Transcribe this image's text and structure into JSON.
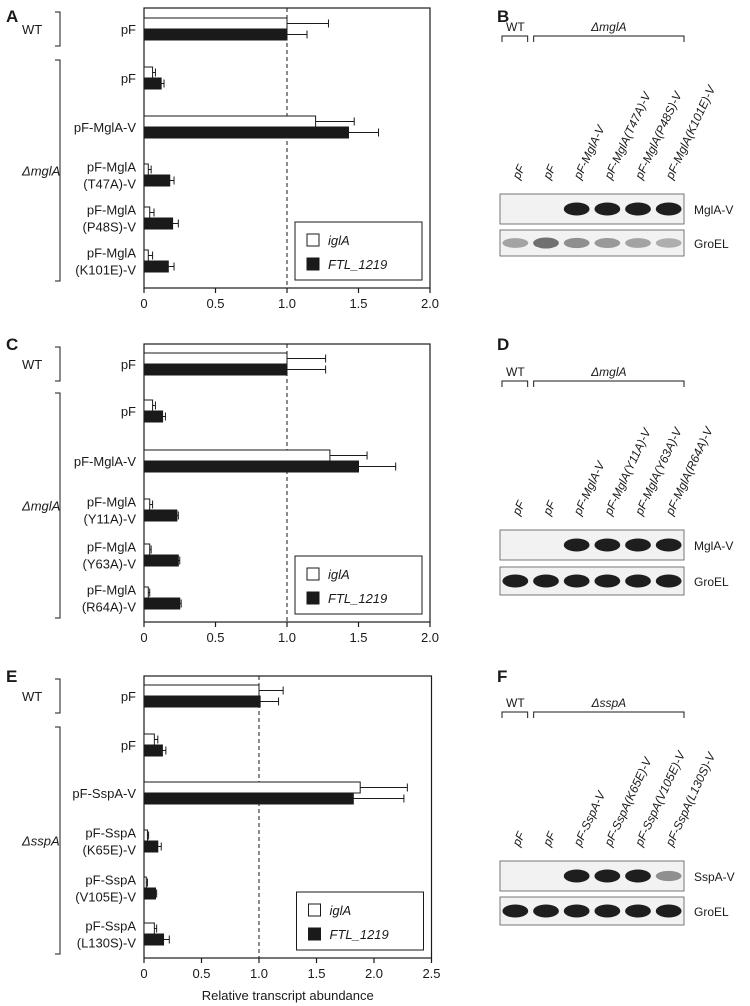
{
  "chart_data": [
    {
      "panel": "A",
      "type": "bar",
      "orientation": "horizontal",
      "xlim": [
        0,
        2.0
      ],
      "xticks": [
        "0",
        "0.5",
        "1.0",
        "1.5",
        "2.0"
      ],
      "reference_line": 1.0,
      "legend_position": "bottom-right",
      "groups": [
        {
          "label": "WT",
          "italic": false,
          "rows": [
            0
          ]
        },
        {
          "label": "ΔmglA",
          "italic": true,
          "rows": [
            1,
            2,
            3,
            4,
            5
          ]
        }
      ],
      "categories": [
        [
          "pF"
        ],
        [
          "pF"
        ],
        [
          "pF-MglA-V"
        ],
        [
          "pF-MglA",
          "(T47A)-V"
        ],
        [
          "pF-MglA",
          "(P48S)-V"
        ],
        [
          "pF-MglA",
          "(K101E)-V"
        ]
      ],
      "series": [
        {
          "name": "iglA",
          "color": "#ffffff",
          "values": [
            1.0,
            0.06,
            1.2,
            0.03,
            0.04,
            0.03
          ],
          "errors": [
            0.29,
            0.02,
            0.27,
            0.02,
            0.03,
            0.03
          ]
        },
        {
          "name": "FTL_1219",
          "color": "#1a1a1a",
          "values": [
            1.0,
            0.12,
            1.43,
            0.18,
            0.2,
            0.17
          ],
          "errors": [
            0.14,
            0.02,
            0.21,
            0.03,
            0.04,
            0.04
          ]
        }
      ]
    },
    {
      "panel": "C",
      "type": "bar",
      "orientation": "horizontal",
      "xlim": [
        0,
        2.0
      ],
      "xticks": [
        "0",
        "0.5",
        "1.0",
        "1.5",
        "2.0"
      ],
      "reference_line": 1.0,
      "legend_position": "bottom-right",
      "groups": [
        {
          "label": "WT",
          "italic": false,
          "rows": [
            0
          ]
        },
        {
          "label": "ΔmglA",
          "italic": true,
          "rows": [
            1,
            2,
            3,
            4,
            5
          ]
        }
      ],
      "categories": [
        [
          "pF"
        ],
        [
          "pF"
        ],
        [
          "pF-MglA-V"
        ],
        [
          "pF-MglA",
          "(Y11A)-V"
        ],
        [
          "pF-MglA",
          "(Y63A)-V"
        ],
        [
          "pF-MglA",
          "(R64A)-V"
        ]
      ],
      "series": [
        {
          "name": "iglA",
          "color": "#ffffff",
          "values": [
            1.0,
            0.06,
            1.3,
            0.04,
            0.04,
            0.03
          ],
          "errors": [
            0.27,
            0.02,
            0.26,
            0.02,
            0.01,
            0.01
          ]
        },
        {
          "name": "FTL_1219",
          "color": "#1a1a1a",
          "values": [
            1.0,
            0.13,
            1.5,
            0.23,
            0.24,
            0.25
          ],
          "errors": [
            0.27,
            0.02,
            0.26,
            0.01,
            0.01,
            0.01
          ]
        }
      ]
    },
    {
      "panel": "E",
      "type": "bar",
      "orientation": "horizontal",
      "xlim": [
        0,
        2.5
      ],
      "xticks": [
        "0",
        "0.5",
        "1.0",
        "1.5",
        "2.0",
        "2.5"
      ],
      "reference_line": 1.0,
      "xlabel": "Relative transcript abundance",
      "legend_position": "bottom-right",
      "groups": [
        {
          "label": "WT",
          "italic": false,
          "rows": [
            0
          ]
        },
        {
          "label": "ΔsspA",
          "italic": true,
          "rows": [
            1,
            2,
            3,
            4,
            5
          ]
        }
      ],
      "categories": [
        [
          "pF"
        ],
        [
          "pF"
        ],
        [
          "pF-SspA-V"
        ],
        [
          "pF-SspA",
          "(K65E)-V"
        ],
        [
          "pF-SspA",
          "(V105E)-V"
        ],
        [
          "pF-SspA",
          "(L130S)-V"
        ]
      ],
      "series": [
        {
          "name": "iglA",
          "color": "#ffffff",
          "values": [
            1.0,
            0.09,
            1.88,
            0.03,
            0.02,
            0.09
          ],
          "errors": [
            0.21,
            0.03,
            0.41,
            0.01,
            0.01,
            0.02
          ]
        },
        {
          "name": "FTL_1219",
          "color": "#1a1a1a",
          "values": [
            1.01,
            0.16,
            1.82,
            0.12,
            0.1,
            0.17
          ],
          "errors": [
            0.16,
            0.03,
            0.44,
            0.03,
            0.01,
            0.05
          ]
        }
      ]
    }
  ],
  "blots": [
    {
      "panel": "B",
      "wt_label": "WT",
      "mutant_label": "ΔmglA",
      "lanes": [
        "pF",
        "pF",
        "pF-MglA-V",
        "pF-MglA(T47A)-V",
        "pF-MglA(P48S)-V",
        "pF-MglA(K101E)-V"
      ],
      "bands": [
        {
          "label": "MglA-V",
          "intensity": [
            0,
            0,
            1,
            1,
            1,
            1
          ]
        },
        {
          "label": "GroEL",
          "intensity": [
            0.35,
            0.6,
            0.45,
            0.4,
            0.35,
            0.3
          ]
        }
      ]
    },
    {
      "panel": "D",
      "wt_label": "WT",
      "mutant_label": "ΔmglA",
      "lanes": [
        "pF",
        "pF",
        "pF-MglA-V",
        "pF-MglA(Y11A)-V",
        "pF-MglA(Y63A)-V",
        "pF-MglA(R64A)-V"
      ],
      "bands": [
        {
          "label": "MglA-V",
          "intensity": [
            0,
            0,
            1,
            1,
            1,
            1
          ]
        },
        {
          "label": "GroEL",
          "intensity": [
            1,
            1,
            1,
            1,
            1,
            1
          ]
        }
      ]
    },
    {
      "panel": "F",
      "wt_label": "WT",
      "mutant_label": "ΔsspA",
      "lanes": [
        "pF",
        "pF",
        "pF-SspA-V",
        "pF-SspA(K65E)-V",
        "pF-SspA(V105E)-V",
        "pF-SspA(L130S)-V"
      ],
      "bands": [
        {
          "label": "SspA-V",
          "intensity": [
            0,
            0,
            1,
            1,
            1,
            0.45
          ]
        },
        {
          "label": "GroEL",
          "intensity": [
            1,
            1,
            1,
            1,
            1,
            1
          ]
        }
      ]
    }
  ]
}
